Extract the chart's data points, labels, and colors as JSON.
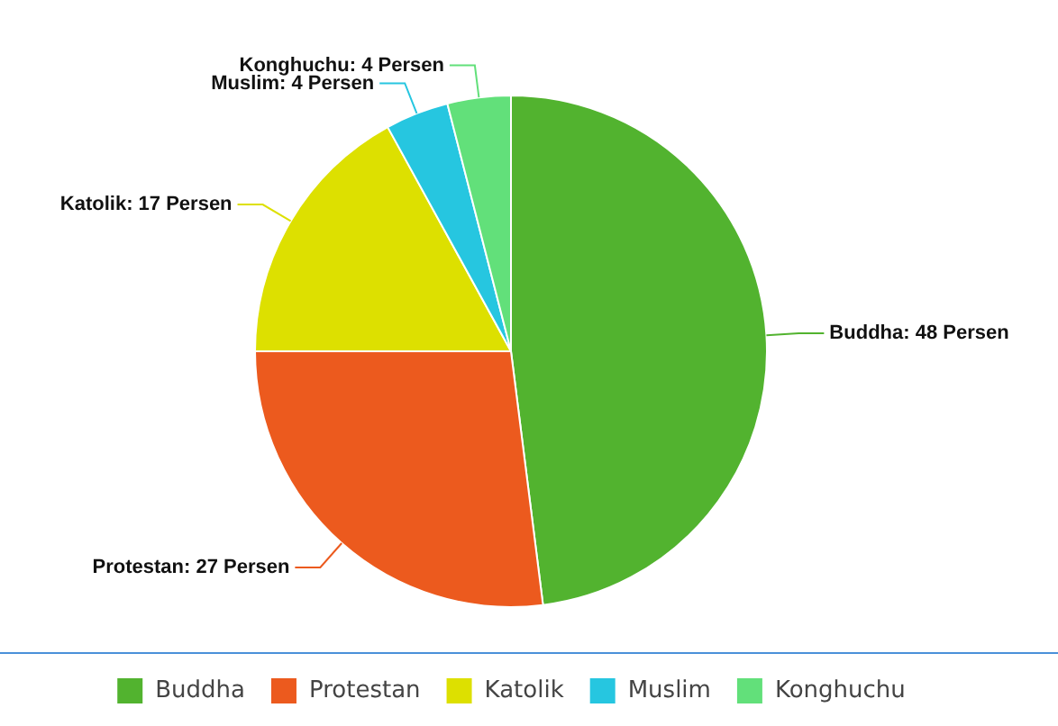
{
  "chart_data": {
    "type": "pie",
    "categories": [
      "Buddha",
      "Protestan",
      "Katolik",
      "Muslim",
      "Konghuchu"
    ],
    "values": [
      48,
      27,
      17,
      4,
      4
    ],
    "colors": [
      "#52b32f",
      "#ec5a1e",
      "#dde000",
      "#26c6e0",
      "#62e07a"
    ],
    "value_labels": [
      "Buddha: 48 Persen",
      "Protestan: 27 Persen",
      "Katolik: 17 Persen",
      "Muslim: 4 Persen",
      "Konghuchu: 4 Persen"
    ],
    "legend": "bottom"
  }
}
